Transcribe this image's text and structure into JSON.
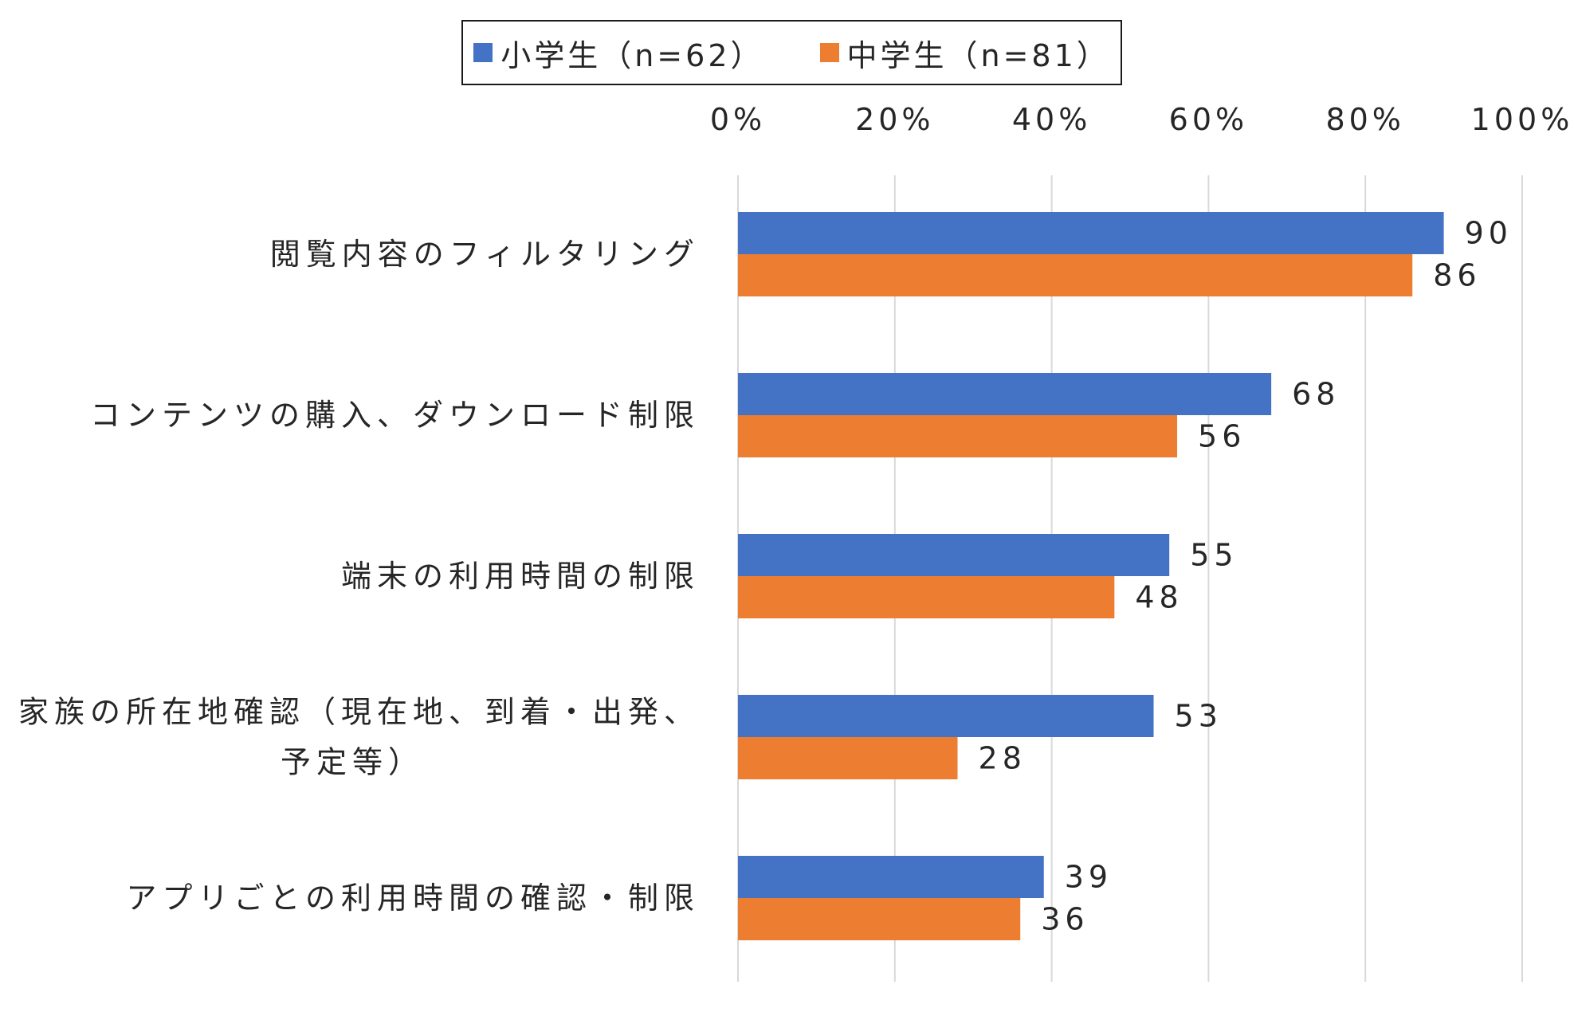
{
  "chart_data": {
    "type": "bar",
    "orientation": "horizontal",
    "categories": [
      [
        "閲覧内容のフィルタリング"
      ],
      [
        "コンテンツの購入、ダウンロード制限"
      ],
      [
        "端末の利用時間の制限"
      ],
      [
        "家族の所在地確認（現在地、到着・出発、",
        "予定等）"
      ],
      [
        "アプリごとの利用時間の確認・制限"
      ]
    ],
    "series": [
      {
        "name": "小学生（n=62）",
        "color": "#4472C4",
        "values": [
          90,
          68,
          55,
          53,
          39
        ]
      },
      {
        "name": "中学生（n=81）",
        "color": "#ED7D31",
        "values": [
          86,
          56,
          48,
          28,
          36
        ]
      }
    ],
    "xlim": [
      0,
      100
    ],
    "ticks": [
      "0%",
      "20%",
      "40%",
      "60%",
      "80%",
      "100%"
    ],
    "grid": true,
    "legend_position": "top"
  }
}
